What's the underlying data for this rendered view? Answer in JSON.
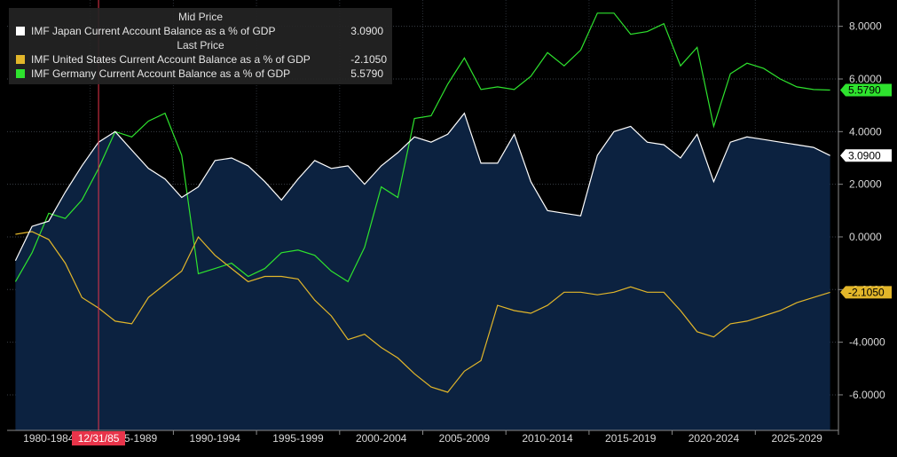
{
  "legend": {
    "header_mid": "Mid Price",
    "header_last": "Last Price",
    "items": [
      {
        "name": "IMF Japan Current Account Balance as a % of GDP",
        "value": "3.0900",
        "color": "#ffffff"
      },
      {
        "name": "IMF United States Current Account Balance as a % of GDP",
        "value": "-2.1050",
        "color": "#e2b62a"
      },
      {
        "name": "IMF Germany Current Account Balance as a % of GDP",
        "value": "5.5790",
        "color": "#2ee32e"
      }
    ]
  },
  "marker_label": "12/31/85",
  "chart_data": {
    "type": "line",
    "x": [
      1980,
      1981,
      1982,
      1983,
      1984,
      1985,
      1986,
      1987,
      1988,
      1989,
      1990,
      1991,
      1992,
      1993,
      1994,
      1995,
      1996,
      1997,
      1998,
      1999,
      2000,
      2001,
      2002,
      2003,
      2004,
      2005,
      2006,
      2007,
      2008,
      2009,
      2010,
      2011,
      2012,
      2013,
      2014,
      2015,
      2016,
      2017,
      2018,
      2019,
      2020,
      2021,
      2022,
      2023,
      2024,
      2025,
      2026,
      2027,
      2028,
      2029
    ],
    "series": [
      {
        "name": "IMF Japan Current Account Balance as a % of GDP",
        "color": "#ffffff",
        "filled": true,
        "values": [
          -0.9,
          0.4,
          0.6,
          1.7,
          2.7,
          3.6,
          4.0,
          3.3,
          2.6,
          2.2,
          1.5,
          1.9,
          2.9,
          3.0,
          2.7,
          2.1,
          1.4,
          2.2,
          2.9,
          2.6,
          2.7,
          2.0,
          2.7,
          3.2,
          3.8,
          3.6,
          3.9,
          4.7,
          2.8,
          2.8,
          3.9,
          2.1,
          1.0,
          0.9,
          0.8,
          3.1,
          4.0,
          4.2,
          3.6,
          3.5,
          3.0,
          3.9,
          2.1,
          3.6,
          3.8,
          3.7,
          3.6,
          3.5,
          3.4,
          3.09
        ]
      },
      {
        "name": "IMF United States Current Account Balance as a % of GDP",
        "color": "#e2b62a",
        "values": [
          0.1,
          0.2,
          -0.1,
          -1.0,
          -2.3,
          -2.7,
          -3.2,
          -3.3,
          -2.3,
          -1.8,
          -1.3,
          0.0,
          -0.7,
          -1.2,
          -1.7,
          -1.5,
          -1.5,
          -1.6,
          -2.4,
          -3.0,
          -3.9,
          -3.7,
          -4.2,
          -4.6,
          -5.2,
          -5.7,
          -5.9,
          -5.1,
          -4.7,
          -2.6,
          -2.8,
          -2.9,
          -2.6,
          -2.1,
          -2.1,
          -2.2,
          -2.1,
          -1.9,
          -2.1,
          -2.1,
          -2.8,
          -3.6,
          -3.8,
          -3.3,
          -3.2,
          -3.0,
          -2.8,
          -2.5,
          -2.3,
          -2.105
        ]
      },
      {
        "name": "IMF Germany Current Account Balance as a % of GDP",
        "color": "#2ee32e",
        "values": [
          -1.7,
          -0.6,
          0.9,
          0.7,
          1.4,
          2.6,
          4.0,
          3.8,
          4.4,
          4.7,
          3.1,
          -1.4,
          -1.2,
          -1.0,
          -1.5,
          -1.2,
          -0.6,
          -0.5,
          -0.7,
          -1.3,
          -1.7,
          -0.4,
          1.9,
          1.5,
          4.5,
          4.6,
          5.8,
          6.8,
          5.6,
          5.7,
          5.6,
          6.1,
          7.0,
          6.5,
          7.1,
          8.5,
          8.5,
          7.7,
          7.8,
          8.1,
          6.5,
          7.2,
          4.2,
          6.2,
          6.6,
          6.4,
          6.0,
          5.7,
          5.6,
          5.579
        ]
      }
    ],
    "y_ticks": [
      "8.0000",
      "6.0000",
      "4.0000",
      "2.0000",
      "0.0000",
      "-2.0000",
      "-4.0000",
      "-6.0000"
    ],
    "y_tick_values": [
      8,
      6,
      4,
      2,
      0,
      -2,
      -4,
      -6
    ],
    "ylim": [
      -7.35,
      9.0
    ],
    "x_tick_labels": [
      "1980-1984",
      "1985-1989",
      "1990-1994",
      "1995-1999",
      "2000-2004",
      "2005-2009",
      "2010-2014",
      "2015-2019",
      "2020-2024",
      "2025-2029"
    ],
    "x_tick_years": [
      1980,
      1985,
      1990,
      1995,
      2000,
      2005,
      2010,
      2015,
      2020,
      2025
    ],
    "last_values": [
      "5.5790",
      "3.0900",
      "-2.1050"
    ],
    "marker_year": 1985,
    "grid": true
  }
}
